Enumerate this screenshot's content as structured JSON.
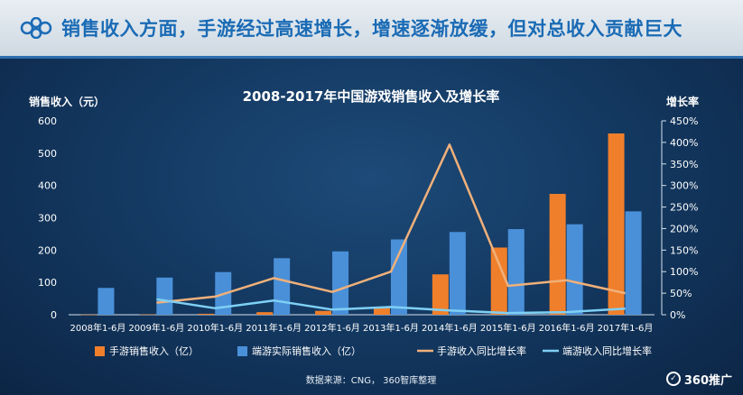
{
  "headline": "销售收入方面，手游经过高速增长，增速逐渐放缓，但对总收入贡献巨大",
  "source": "数据来源：CNG， 360智库整理",
  "watermark": {
    "text": "360推广",
    "icon": "360-logo-icon"
  },
  "colors": {
    "mobile_bar": "#f07f2b",
    "pc_bar": "#4a90d9",
    "mobile_growth_line": "#f0b07a",
    "pc_growth_line": "#7fd0f5",
    "headline": "#1a6bb5"
  },
  "chart_data": {
    "type": "bar",
    "title": "2008-2017年中国游戏销售收入及增长率",
    "ylabel": "销售收入（元）",
    "y2label": "增长率",
    "categories": [
      "2008年1-6月",
      "2009年1-6月",
      "2010年1-6月",
      "2011年1-6月",
      "2012年1-6月",
      "2013年1-6月",
      "2014年1-6月",
      "2015年1-6月",
      "2016年1-6月",
      "2017年1-6月"
    ],
    "ylim": [
      0,
      600
    ],
    "yticks": [
      "0",
      "100",
      "200",
      "300",
      "400",
      "500",
      "600"
    ],
    "y2lim": [
      0,
      4.5
    ],
    "y2ticks": [
      "0%",
      "50%",
      "100%",
      "150%",
      "200%",
      "250%",
      "300%",
      "350%",
      "400%",
      "450%"
    ],
    "grid": false,
    "legend_position": "bottom",
    "series": [
      {
        "name": "手游销售收入（亿）",
        "kind": "bar",
        "axis": "left",
        "color": "#f07f2b",
        "values": [
          0.5,
          1,
          3,
          8,
          12,
          25,
          125,
          208,
          374,
          561
        ]
      },
      {
        "name": "端游实际销售收入（亿）",
        "kind": "bar",
        "axis": "left",
        "color": "#4a90d9",
        "values": [
          83,
          115,
          132,
          175,
          196,
          233,
          256,
          265,
          280,
          320
        ]
      },
      {
        "name": "手游收入同比增长率",
        "kind": "line",
        "axis": "right",
        "color": "#f0b07a",
        "values": [
          null,
          0.28,
          0.42,
          0.85,
          0.53,
          1.0,
          3.95,
          0.67,
          0.8,
          0.5
        ]
      },
      {
        "name": "端游收入同比增长率",
        "kind": "line",
        "axis": "right",
        "color": "#7fd0f5",
        "values": [
          null,
          0.36,
          0.15,
          0.33,
          0.12,
          0.18,
          0.1,
          0.04,
          0.06,
          0.14
        ]
      }
    ]
  }
}
